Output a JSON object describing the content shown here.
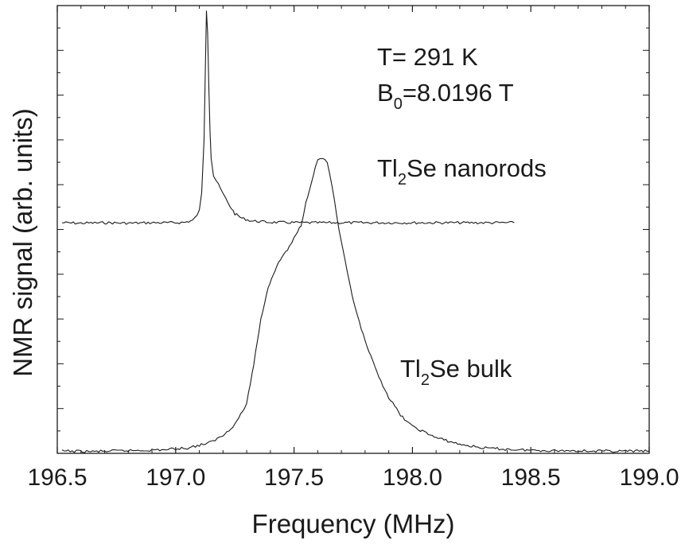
{
  "chart_data": {
    "type": "line",
    "xlabel": "Frequency (MHz)",
    "ylabel": "NMR signal (arb. units)",
    "xlim": [
      196.5,
      199.0
    ],
    "ylim": [
      0,
      1
    ],
    "x_ticks": [
      "196.5",
      "197.0",
      "197.5",
      "198.0",
      "198.5",
      "199.0"
    ],
    "grid": false,
    "annotations": {
      "temperature": "T= 291 K",
      "field_prefix": "B",
      "field_subscript": "0",
      "field_value": "=8.0196 T",
      "nanorods_prefix": "Tl",
      "nanorods_subscript": "2",
      "nanorods_suffix": "Se nanorods",
      "bulk_prefix": "Tl",
      "bulk_subscript": "2",
      "bulk_suffix": "Se  bulk"
    },
    "series": [
      {
        "x": [
          196.52,
          196.6,
          196.7,
          196.8,
          196.9,
          197.0,
          197.04,
          197.07,
          197.09,
          197.1,
          197.11,
          197.12,
          197.125,
          197.13,
          197.135,
          197.14,
          197.145,
          197.15,
          197.16,
          197.17,
          197.18,
          197.2,
          197.22,
          197.25,
          197.28,
          197.32,
          197.4,
          197.55,
          197.7,
          197.9,
          198.1,
          198.3,
          198.43
        ],
        "y": [
          0.515,
          0.514,
          0.515,
          0.514,
          0.515,
          0.515,
          0.516,
          0.52,
          0.53,
          0.545,
          0.58,
          0.7,
          0.85,
          0.99,
          0.94,
          0.82,
          0.72,
          0.66,
          0.62,
          0.61,
          0.6,
          0.58,
          0.56,
          0.535,
          0.525,
          0.519,
          0.516,
          0.515,
          0.515,
          0.515,
          0.515,
          0.515,
          0.515
        ]
      },
      {
        "x": [
          196.52,
          196.65,
          196.8,
          196.95,
          197.05,
          197.1,
          197.15,
          197.2,
          197.25,
          197.3,
          197.33,
          197.36,
          197.39,
          197.42,
          197.45,
          197.48,
          197.5,
          197.53,
          197.55,
          197.58,
          197.6,
          197.62,
          197.64,
          197.66,
          197.68,
          197.7,
          197.73,
          197.76,
          197.8,
          197.85,
          197.9,
          197.95,
          198.0,
          198.1,
          198.2,
          198.3,
          198.4,
          198.5,
          198.6,
          198.7,
          198.8,
          198.9,
          199.0
        ],
        "y": [
          0.005,
          0.004,
          0.006,
          0.008,
          0.012,
          0.018,
          0.025,
          0.04,
          0.065,
          0.11,
          0.2,
          0.3,
          0.37,
          0.41,
          0.44,
          0.46,
          0.48,
          0.51,
          0.56,
          0.62,
          0.655,
          0.66,
          0.65,
          0.6,
          0.53,
          0.47,
          0.39,
          0.32,
          0.25,
          0.18,
          0.125,
          0.085,
          0.06,
          0.035,
          0.02,
          0.012,
          0.009,
          0.007,
          0.006,
          0.006,
          0.005,
          0.005,
          0.005
        ]
      }
    ]
  }
}
